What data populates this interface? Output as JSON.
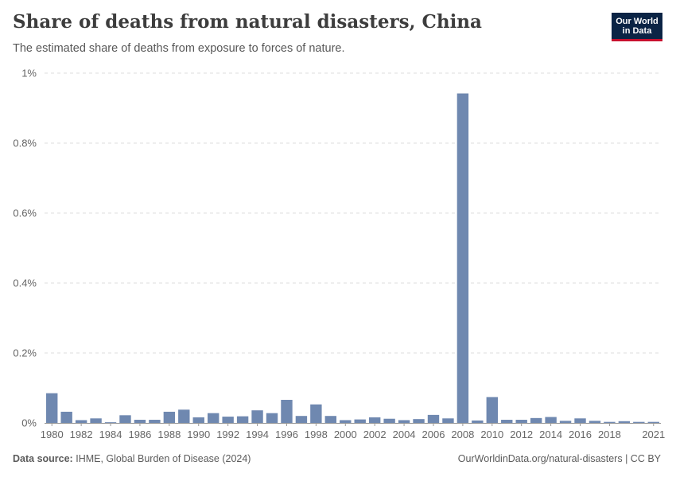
{
  "header": {
    "title": "Share of deaths from natural disasters, China",
    "subtitle": "The estimated share of deaths from exposure to forces of nature.",
    "logo_line1": "Our World",
    "logo_line2": "in Data"
  },
  "footer": {
    "source_label": "Data source:",
    "source_text": "IHME, Global Burden of Disease (2024)",
    "credit": "OurWorldinData.org/natural-disasters | CC BY"
  },
  "colors": {
    "bar": "#6f88b0",
    "grid": "#dddddd",
    "axis_text": "#666666"
  },
  "chart_data": {
    "type": "bar",
    "title": "Share of deaths from natural disasters, China",
    "xlabel": "",
    "ylabel": "",
    "unit": "%",
    "ylim": [
      0,
      1
    ],
    "yticks": [
      0,
      0.2,
      0.4,
      0.6,
      0.8,
      1
    ],
    "ytick_labels": [
      "0%",
      "0.2%",
      "0.4%",
      "0.6%",
      "0.8%",
      "1%"
    ],
    "xtick_labels": [
      "1980",
      "1982",
      "1984",
      "1986",
      "1988",
      "1990",
      "1992",
      "1994",
      "1996",
      "1998",
      "2000",
      "2002",
      "2004",
      "2006",
      "2008",
      "2010",
      "2012",
      "2014",
      "2016",
      "2018",
      "2021"
    ],
    "grid": true,
    "categories": [
      1980,
      1981,
      1982,
      1983,
      1984,
      1985,
      1986,
      1987,
      1988,
      1989,
      1990,
      1991,
      1992,
      1993,
      1994,
      1995,
      1996,
      1997,
      1998,
      1999,
      2000,
      2001,
      2002,
      2003,
      2004,
      2005,
      2006,
      2007,
      2008,
      2009,
      2010,
      2011,
      2012,
      2013,
      2014,
      2015,
      2016,
      2017,
      2018,
      2019,
      2020,
      2021
    ],
    "values": [
      0.085,
      0.032,
      0.008,
      0.013,
      0.002,
      0.022,
      0.009,
      0.009,
      0.032,
      0.038,
      0.016,
      0.028,
      0.018,
      0.019,
      0.036,
      0.028,
      0.066,
      0.02,
      0.053,
      0.02,
      0.008,
      0.01,
      0.016,
      0.012,
      0.008,
      0.011,
      0.023,
      0.013,
      0.942,
      0.007,
      0.074,
      0.009,
      0.009,
      0.014,
      0.017,
      0.006,
      0.013,
      0.006,
      0.003,
      0.005,
      0.003,
      0.003
    ]
  }
}
